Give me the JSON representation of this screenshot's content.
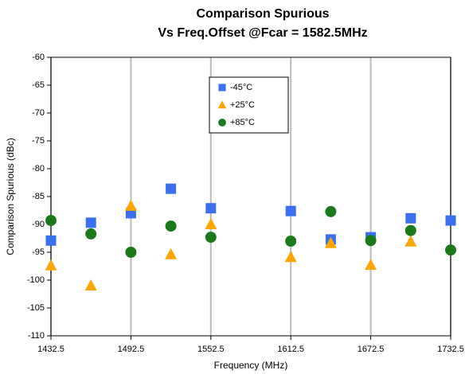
{
  "chart_data": {
    "type": "scatter",
    "title": [
      "Comparison Spurious",
      "Vs Freq.Offset @Fcar = 1582.5MHz"
    ],
    "x_label": "Frequency (MHz)",
    "y_label": "Comparison Spurious  (dBc)",
    "x": [
      1432.5,
      1462.5,
      1492.5,
      1522.5,
      1552.5,
      1612.5,
      1642.5,
      1672.5,
      1702.5,
      1732.5
    ],
    "series": [
      {
        "name": "-45°C",
        "color": "#3a6ff0",
        "marker": "square",
        "values": [
          -92.9,
          -89.7,
          -88,
          -83.6,
          -87.1,
          -87.6,
          -92.7,
          -92.3,
          -88.9,
          -89.3
        ]
      },
      {
        "name": "+25°C",
        "color": "#ffa500",
        "marker": "triangle",
        "values": [
          -97.4,
          -101,
          -86.7,
          -95.4,
          -90,
          -95.9,
          -93.4,
          -97.3,
          -93.1,
          null
        ]
      },
      {
        "name": "+85°C",
        "color": "#1a7a1a",
        "marker": "circle",
        "values": [
          -89.3,
          -91.7,
          -95,
          -90.3,
          -92.3,
          -93,
          -87.7,
          -92.9,
          -91.1,
          -94.6
        ]
      }
    ],
    "xlim": [
      1432.5,
      1732.5
    ],
    "xticks": [
      1432.5,
      1492.5,
      1552.5,
      1612.5,
      1672.5,
      1732.5
    ],
    "ylim": [
      -110,
      -60
    ],
    "yticks": [
      -60,
      -65,
      -70,
      -75,
      -80,
      -85,
      -90,
      -95,
      -100,
      -105,
      -110
    ],
    "grid": "x"
  }
}
